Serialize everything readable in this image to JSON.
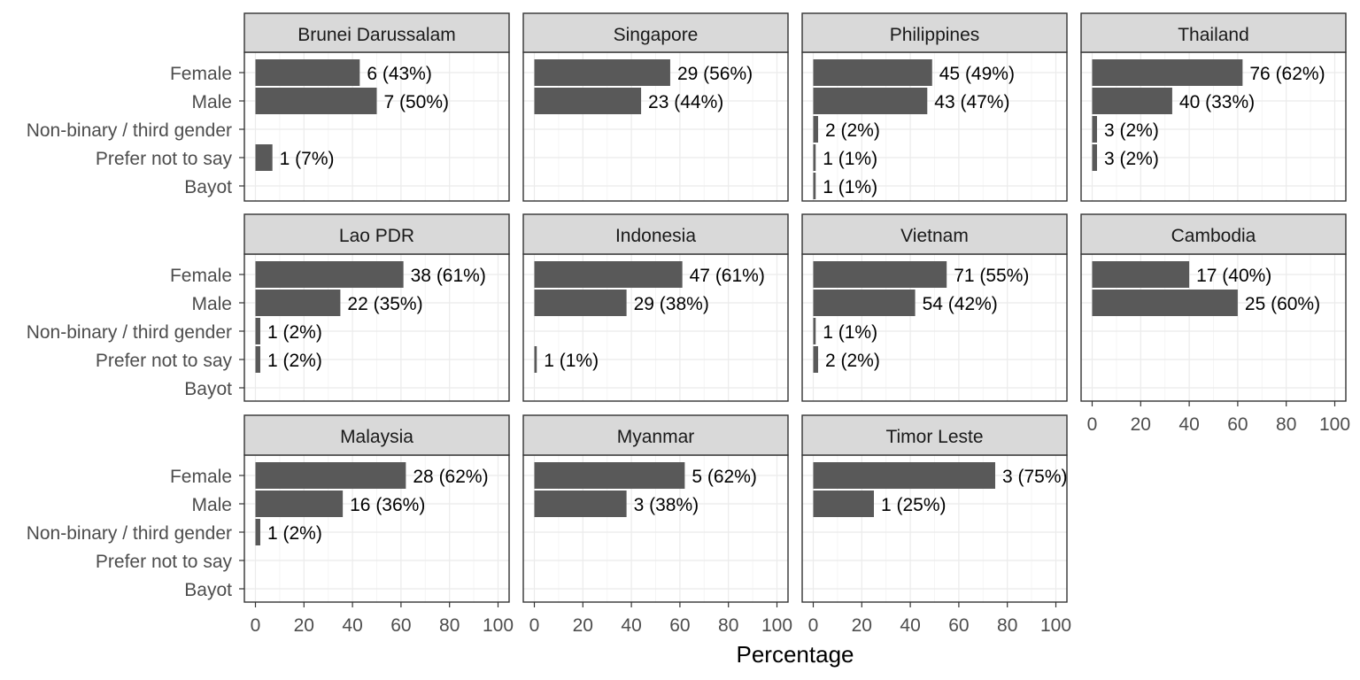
{
  "chart_data": {
    "type": "bar",
    "orientation": "horizontal",
    "categories": [
      "Female",
      "Male",
      "Non-binary / third gender",
      "Prefer not to say",
      "Bayot"
    ],
    "xlabel": "Percentage",
    "xlim": [
      0,
      100
    ],
    "x_ticks": [
      0,
      20,
      40,
      60,
      80,
      100
    ],
    "grid": true,
    "legend": "none",
    "bar_color": "#595959",
    "strip_color": "#d9d9d9",
    "facets": [
      {
        "title": "Brunei Darussalam",
        "values": [
          43,
          50,
          null,
          7,
          null
        ],
        "labels": [
          "6 (43%)",
          "7 (50%)",
          null,
          "1 (7%)",
          null
        ]
      },
      {
        "title": "Singapore",
        "values": [
          56,
          44,
          null,
          null,
          null
        ],
        "labels": [
          "29 (56%)",
          "23 (44%)",
          null,
          null,
          null
        ]
      },
      {
        "title": "Philippines",
        "values": [
          49,
          47,
          2,
          1,
          1
        ],
        "labels": [
          "45 (49%)",
          "43 (47%)",
          "2 (2%)",
          "1 (1%)",
          "1 (1%)"
        ]
      },
      {
        "title": "Thailand",
        "values": [
          62,
          33,
          2,
          2,
          null
        ],
        "labels": [
          "76 (62%)",
          "40 (33%)",
          "3 (2%)",
          "3 (2%)",
          null
        ]
      },
      {
        "title": "Lao PDR",
        "values": [
          61,
          35,
          2,
          2,
          null
        ],
        "labels": [
          "38 (61%)",
          "22 (35%)",
          "1 (2%)",
          "1 (2%)",
          null
        ]
      },
      {
        "title": "Indonesia",
        "values": [
          61,
          38,
          null,
          1,
          null
        ],
        "labels": [
          "47 (61%)",
          "29 (38%)",
          null,
          "1 (1%)",
          null
        ]
      },
      {
        "title": "Vietnam",
        "values": [
          55,
          42,
          1,
          2,
          null
        ],
        "labels": [
          "71 (55%)",
          "54 (42%)",
          "1 (1%)",
          "2 (2%)",
          null
        ]
      },
      {
        "title": "Cambodia",
        "values": [
          40,
          60,
          null,
          null,
          null
        ],
        "labels": [
          "17 (40%)",
          "25 (60%)",
          null,
          null,
          null
        ]
      },
      {
        "title": "Malaysia",
        "values": [
          62,
          36,
          2,
          null,
          null
        ],
        "labels": [
          "28 (62%)",
          "16 (36%)",
          "1 (2%)",
          null,
          null
        ]
      },
      {
        "title": "Myanmar",
        "values": [
          62,
          38,
          null,
          null,
          null
        ],
        "labels": [
          "5 (62%)",
          "3 (38%)",
          null,
          null,
          null
        ]
      },
      {
        "title": "Timor Leste",
        "values": [
          75,
          25,
          null,
          null,
          null
        ],
        "labels": [
          "3 (75%)",
          "1 (25%)",
          null,
          null,
          null
        ]
      }
    ]
  }
}
